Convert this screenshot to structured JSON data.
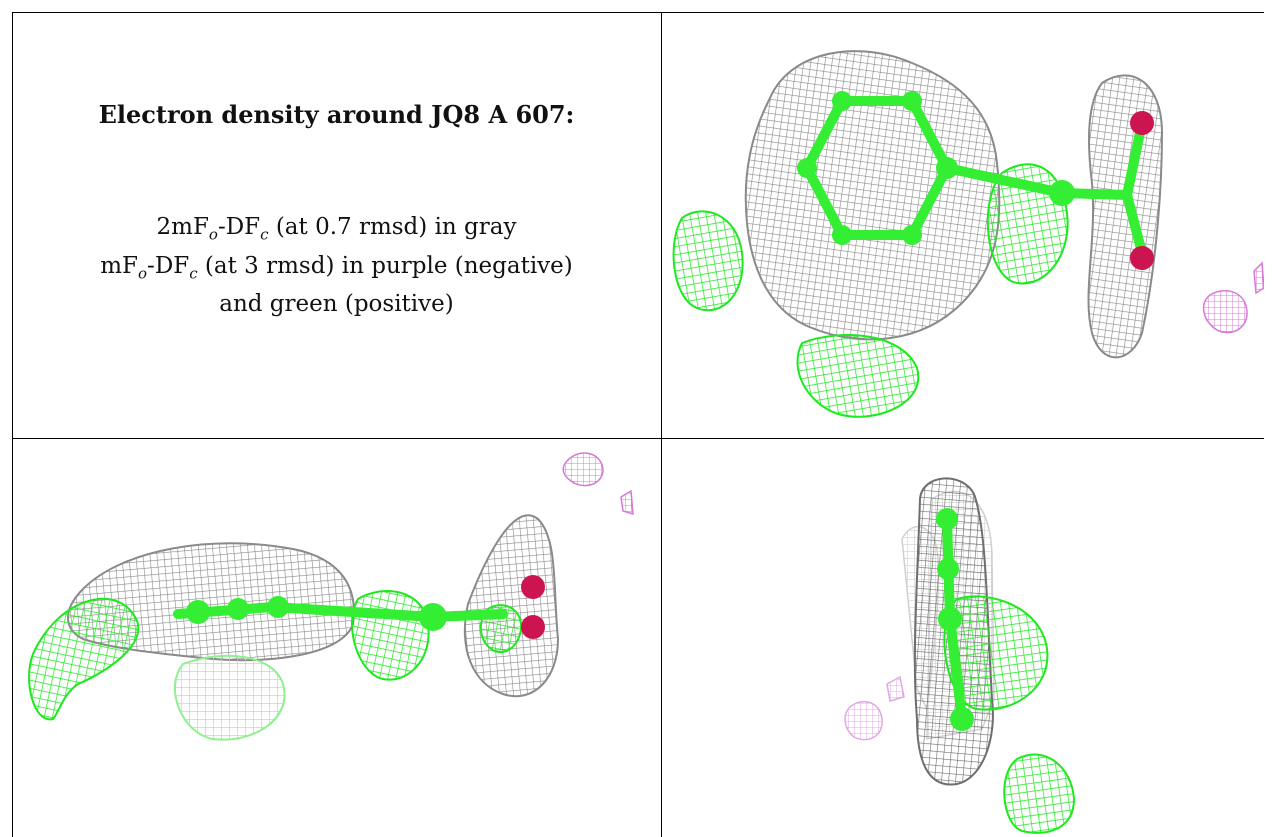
{
  "caption": {
    "title": "Electron density around JQ8 A 607:",
    "line1": {
      "prefix": "2mF",
      "sub1": "o",
      "mid": "-DF",
      "sub2": "c",
      "suffix": " (at 0.7 rmsd) in gray"
    },
    "line2": {
      "prefix": "mF",
      "sub1": "o",
      "mid": "-DF",
      "sub2": "c",
      "suffix": " (at 3 rmsd) in purple (negative)"
    },
    "line3": "and green (positive)"
  },
  "colors": {
    "gray_mesh": "#8a8a8a",
    "green_mesh": "#1ee81e",
    "purple_mesh": "#d878d8",
    "atom_green": "#33ee33",
    "atom_red": "#cc1450"
  },
  "panels": [
    "view-top-right",
    "view-bottom-left",
    "view-bottom-right"
  ]
}
